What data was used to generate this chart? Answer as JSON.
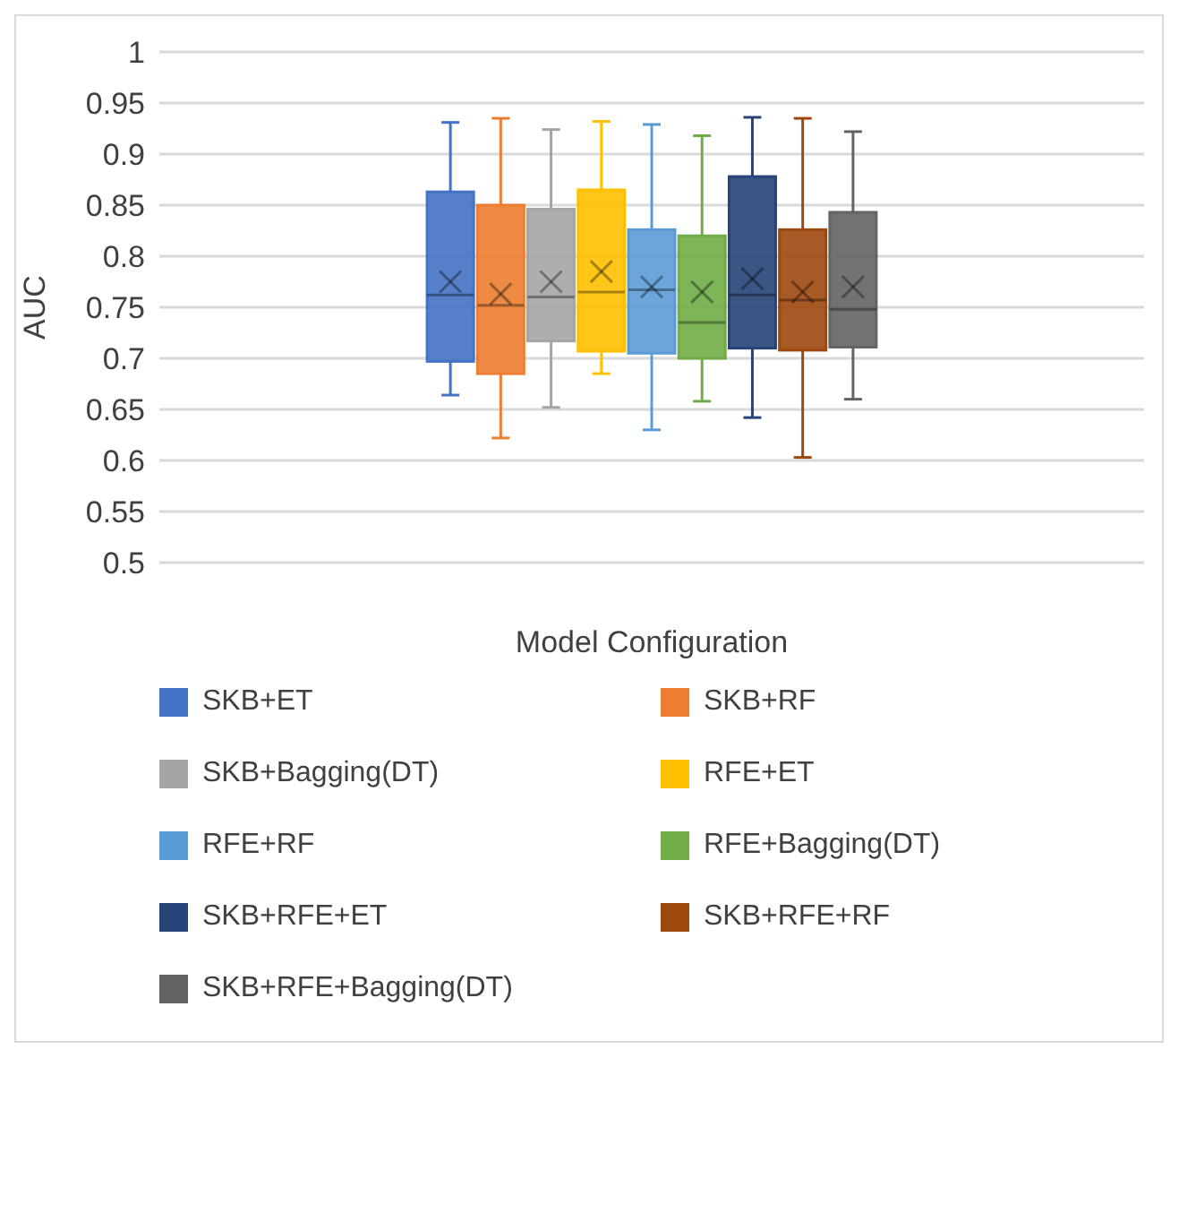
{
  "chart_data": {
    "type": "box",
    "xlabel": "Model Configuration",
    "ylabel": "AUC",
    "categories": [
      null
    ],
    "ylim": [
      0.5,
      1
    ],
    "yticks": [
      0.5,
      0.55,
      0.6,
      0.65,
      0.7,
      0.75,
      0.8,
      0.85,
      0.9,
      0.95,
      1
    ],
    "grid": "y",
    "legend": "bottom",
    "series": [
      {
        "name": "SKB+ET",
        "color": "#4472c4",
        "boxes": [
          {
            "low": 0.664,
            "q1": 0.697,
            "median": 0.762,
            "q3": 0.863,
            "high": 0.931,
            "mean": 0.775
          }
        ]
      },
      {
        "name": "SKB+RF",
        "color": "#ed7d31",
        "boxes": [
          {
            "low": 0.622,
            "q1": 0.685,
            "median": 0.752,
            "q3": 0.85,
            "high": 0.935,
            "mean": 0.763
          }
        ]
      },
      {
        "name": "SKB+Bagging(DT)",
        "color": "#a5a5a5",
        "boxes": [
          {
            "low": 0.652,
            "q1": 0.717,
            "median": 0.76,
            "q3": 0.846,
            "high": 0.924,
            "mean": 0.775
          }
        ]
      },
      {
        "name": "RFE+ET",
        "color": "#ffc000",
        "boxes": [
          {
            "low": 0.685,
            "q1": 0.707,
            "median": 0.765,
            "q3": 0.865,
            "high": 0.932,
            "mean": 0.785
          }
        ]
      },
      {
        "name": "RFE+RF",
        "color": "#5b9bd5",
        "boxes": [
          {
            "low": 0.63,
            "q1": 0.705,
            "median": 0.767,
            "q3": 0.826,
            "high": 0.929,
            "mean": 0.77
          }
        ]
      },
      {
        "name": "RFE+Bagging(DT)",
        "color": "#70ad47",
        "boxes": [
          {
            "low": 0.658,
            "q1": 0.7,
            "median": 0.735,
            "q3": 0.82,
            "high": 0.918,
            "mean": 0.765
          }
        ]
      },
      {
        "name": "SKB+RFE+ET",
        "color": "#264478",
        "boxes": [
          {
            "low": 0.642,
            "q1": 0.71,
            "median": 0.762,
            "q3": 0.878,
            "high": 0.936,
            "mean": 0.778
          }
        ]
      },
      {
        "name": "SKB+RFE+RF",
        "color": "#9e480e",
        "boxes": [
          {
            "low": 0.603,
            "q1": 0.708,
            "median": 0.757,
            "q3": 0.826,
            "high": 0.935,
            "mean": 0.765
          }
        ]
      },
      {
        "name": "SKB+RFE+Bagging(DT)",
        "color": "#636363",
        "boxes": [
          {
            "low": 0.66,
            "q1": 0.711,
            "median": 0.748,
            "q3": 0.843,
            "high": 0.922,
            "mean": 0.77
          }
        ]
      }
    ]
  }
}
